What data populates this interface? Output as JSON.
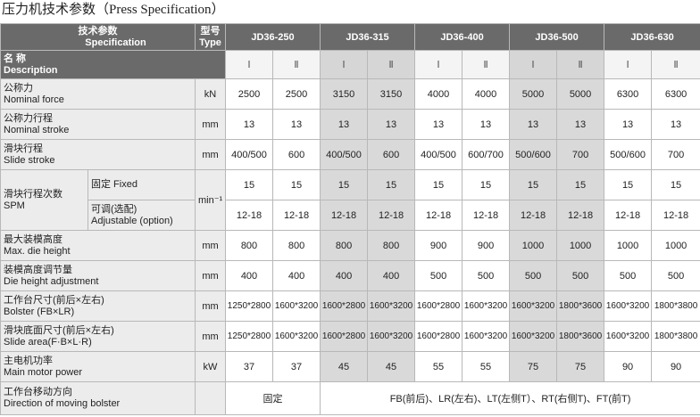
{
  "title": "压力机技术参数（Press Specification）",
  "header": {
    "spec_cn": "技术参数",
    "spec_en": "Specification",
    "type_cn": "型号",
    "type_en": "Type",
    "name_cn": "名 称",
    "name_en": "Description",
    "models": [
      "JD36-250",
      "JD36-315",
      "JD36-400",
      "JD36-500",
      "JD36-630"
    ],
    "sub_labels": [
      "Ⅰ",
      "Ⅱ",
      "Ⅰ",
      "Ⅱ",
      "Ⅰ",
      "Ⅱ",
      "Ⅰ",
      "Ⅱ",
      "Ⅰ",
      "Ⅱ"
    ]
  },
  "rows": [
    {
      "cn": "公称力",
      "en": "Nominal force",
      "unit": "kN",
      "values": [
        "2500",
        "2500",
        "3150",
        "3150",
        "4000",
        "4000",
        "5000",
        "5000",
        "6300",
        "6300"
      ]
    },
    {
      "cn": "公称力行程",
      "en": "Nominal stroke",
      "unit": "mm",
      "values": [
        "13",
        "13",
        "13",
        "13",
        "13",
        "13",
        "13",
        "13",
        "13",
        "13"
      ]
    },
    {
      "cn": "滑块行程",
      "en": "Slide stroke",
      "unit": "mm",
      "values": [
        "400/500",
        "600",
        "400/500",
        "600",
        "400/500",
        "600/700",
        "500/600",
        "700",
        "500/600",
        "700"
      ]
    },
    {
      "cn": "滑块行程次数",
      "en": "SPM",
      "unit": "min⁻¹",
      "subrows": [
        {
          "cn": "固定  Fixed",
          "values": [
            "15",
            "15",
            "15",
            "15",
            "15",
            "15",
            "15",
            "15",
            "15",
            "15"
          ]
        },
        {
          "cn": "可调(选配)",
          "en": "Adjustable (option)",
          "values": [
            "12-18",
            "12-18",
            "12-18",
            "12-18",
            "12-18",
            "12-18",
            "12-18",
            "12-18",
            "12-18",
            "12-18"
          ]
        }
      ]
    },
    {
      "cn": "最大装模高度",
      "en": "Max. die height",
      "unit": "mm",
      "values": [
        "800",
        "800",
        "800",
        "800",
        "900",
        "900",
        "1000",
        "1000",
        "1000",
        "1000"
      ]
    },
    {
      "cn": "装模高度调节量",
      "en": "Die height adjustment",
      "unit": "mm",
      "values": [
        "400",
        "400",
        "400",
        "400",
        "500",
        "500",
        "500",
        "500",
        "500",
        "500"
      ]
    },
    {
      "cn": "工作台尺寸(前后×左右)",
      "en": "Bolster (FB×LR)",
      "unit": "mm",
      "values": [
        "1250*2800",
        "1600*3200",
        "1600*2800",
        "1600*3200",
        "1600*2800",
        "1600*3200",
        "1600*3200",
        "1800*3600",
        "1600*3200",
        "1800*3800"
      ]
    },
    {
      "cn": "滑块底面尺寸(前后×左右)",
      "en": "Slide area(F·B×L·R)",
      "unit": "mm",
      "values": [
        "1250*2800",
        "1600*3200",
        "1600*2800",
        "1600*3200",
        "1600*2800",
        "1600*3200",
        "1600*3200",
        "1800*3600",
        "1600*3200",
        "1800*3800"
      ]
    },
    {
      "cn": "主电机功率",
      "en": "Main motor power",
      "unit": "kW",
      "values": [
        "37",
        "37",
        "45",
        "45",
        "55",
        "55",
        "75",
        "75",
        "90",
        "90"
      ]
    },
    {
      "cn": "工作台移动方向",
      "en": "Direction of moving bolster",
      "values": [
        "固定",
        "FB(前后)、LR(左右)、LT(左侧T）、RT(右侧T)、FT(前T)"
      ]
    }
  ]
}
